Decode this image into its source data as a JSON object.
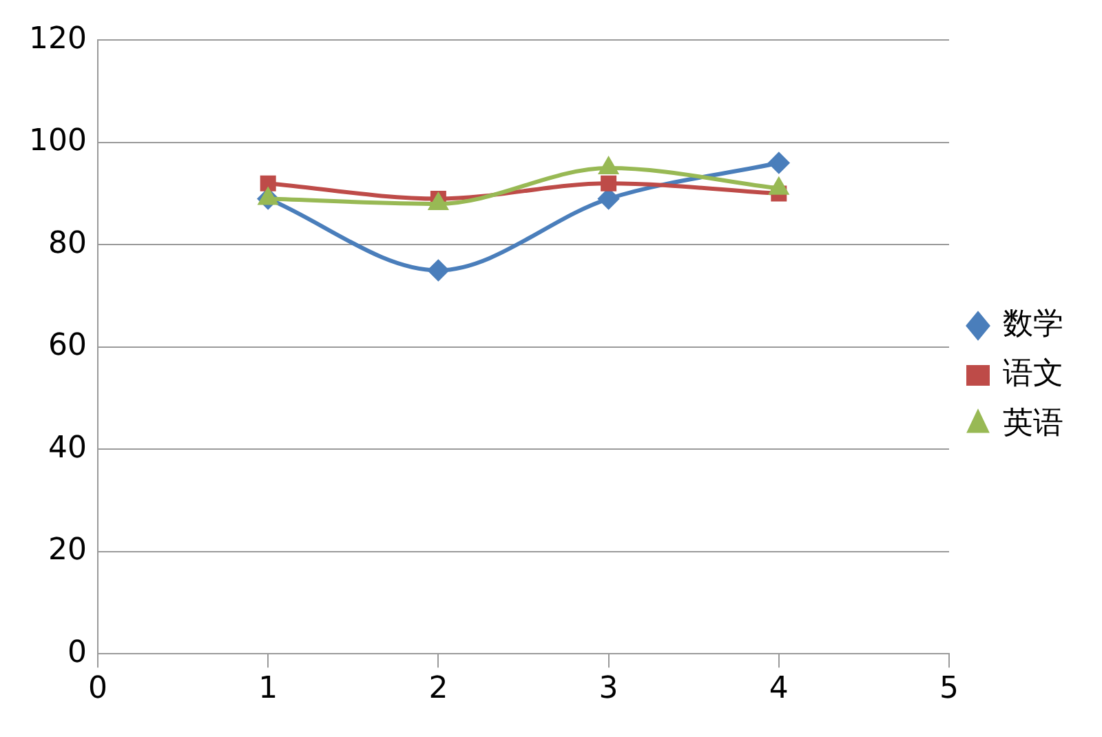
{
  "chart_data": {
    "type": "line",
    "x": [
      1,
      2,
      3,
      4
    ],
    "xlim": [
      0,
      5
    ],
    "xticks": [
      0,
      1,
      2,
      3,
      4,
      5
    ],
    "ylim": [
      0,
      120
    ],
    "yticks": [
      0,
      20,
      40,
      60,
      80,
      100,
      120
    ],
    "grid": "y",
    "legend": "right",
    "series": [
      {
        "name": "数学",
        "color": "#4a7ebb",
        "marker": "diamond",
        "values": [
          89,
          75,
          89,
          96
        ]
      },
      {
        "name": "语文",
        "color": "#be4b48",
        "marker": "square",
        "values": [
          92,
          89,
          92,
          90
        ]
      },
      {
        "name": "英语",
        "color": "#98b954",
        "marker": "triangle",
        "values": [
          89,
          88,
          95,
          91
        ]
      }
    ]
  }
}
